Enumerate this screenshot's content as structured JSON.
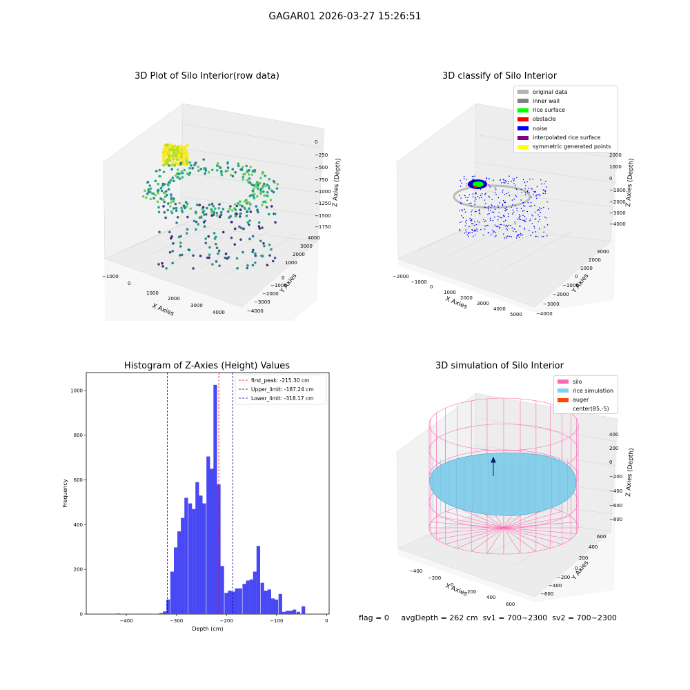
{
  "figure": {
    "suptitle": "GAGAR01 2026-03-27 15:26:51"
  },
  "panels": {
    "raw": {
      "title": "3D Plot of Silo Interior(row data)",
      "xlabel": "X Axies",
      "ylabel": "Y Axies",
      "zlabel": "Z Axies (Depth)",
      "xticks": [
        "−1000",
        "0",
        "1000",
        "2000",
        "3000",
        "4000"
      ],
      "yticks": [
        "−4000",
        "−3000",
        "−2000",
        "−1000",
        "0",
        "1000",
        "2000",
        "3000",
        "4000"
      ],
      "zticks": [
        "0",
        "−250",
        "−500",
        "−750",
        "−1000",
        "−1250",
        "−1500",
        "−1750"
      ]
    },
    "classify": {
      "title": "3D classify of Silo Interior",
      "xlabel": "X Axies",
      "ylabel": "Y Axies",
      "zlabel": "Z Axies (Depth)",
      "xticks": [
        "−2000",
        "−1000",
        "0",
        "1000",
        "2000",
        "3000",
        "4000",
        "5000"
      ],
      "yticks": [
        "−4000",
        "−3000",
        "−2000",
        "−1000",
        "0",
        "1000",
        "2000",
        "3000"
      ],
      "zticks": [
        "2000",
        "1000",
        "0",
        "−1000",
        "−2000",
        "−3000",
        "−4000"
      ],
      "legend": [
        {
          "label": "original data",
          "color": "#b4b4b4"
        },
        {
          "label": "inner wall",
          "color": "#808080"
        },
        {
          "label": "rice surface",
          "color": "#00ff00"
        },
        {
          "label": "obstacle",
          "color": "#ff0000"
        },
        {
          "label": "noise",
          "color": "#0000ff"
        },
        {
          "label": "interpolated rice surface",
          "color": "#800080"
        },
        {
          "label": "symmetric generated points",
          "color": "#ffff00"
        }
      ]
    },
    "simulation": {
      "title": "3D simulation of Silo Interior",
      "xlabel": "X Axies",
      "ylabel": "Y Axies",
      "zlabel": "Z Axies (Depth)",
      "xticks": [
        "−400",
        "−200",
        "0",
        "200",
        "400",
        "600"
      ],
      "yticks": [
        "−600",
        "−400",
        "−200",
        "0",
        "200",
        "400",
        "600"
      ],
      "zticks": [
        "400",
        "200",
        "0",
        "−200",
        "−400",
        "−600",
        "−800"
      ],
      "legend": [
        {
          "label": "silo",
          "color": "#ff69b4"
        },
        {
          "label": "rice simulation",
          "color": "#87ceeb"
        },
        {
          "label": "auger",
          "color": "#ff4500"
        },
        {
          "label": "center(85,-5)",
          "color": ""
        }
      ]
    }
  },
  "chart_data": [
    {
      "type": "bar",
      "title": "Histogram of Z-Axies (Height) Values",
      "xlabel": "Depth (cm)",
      "ylabel": "Frequency",
      "xlim": [
        -480,
        5
      ],
      "ylim": [
        0,
        1080
      ],
      "xticks": [
        -400,
        -300,
        -200,
        -100,
        0
      ],
      "yticks": [
        0,
        200,
        400,
        600,
        800,
        1000
      ],
      "bin_width": 7.2,
      "bar_color": "#4848f4",
      "bins": [
        [
          -420,
          3
        ],
        [
          -375,
          2
        ],
        [
          -362,
          2
        ],
        [
          -348,
          1
        ],
        [
          -334,
          5
        ],
        [
          -327,
          12
        ],
        [
          -320,
          65
        ],
        [
          -312,
          190
        ],
        [
          -305,
          298
        ],
        [
          -298,
          370
        ],
        [
          -291,
          430
        ],
        [
          -284,
          520
        ],
        [
          -276,
          495
        ],
        [
          -269,
          470
        ],
        [
          -262,
          590
        ],
        [
          -255,
          530
        ],
        [
          -248,
          495
        ],
        [
          -240,
          705
        ],
        [
          -233,
          650
        ],
        [
          -226,
          1025
        ],
        [
          -219,
          580
        ],
        [
          -212,
          215
        ],
        [
          -204,
          95
        ],
        [
          -197,
          105
        ],
        [
          -190,
          100
        ],
        [
          -183,
          115
        ],
        [
          -176,
          115
        ],
        [
          -168,
          135
        ],
        [
          -161,
          150
        ],
        [
          -154,
          155
        ],
        [
          -147,
          190
        ],
        [
          -140,
          305
        ],
        [
          -132,
          140
        ],
        [
          -125,
          105
        ],
        [
          -118,
          110
        ],
        [
          -111,
          70
        ],
        [
          -104,
          65
        ],
        [
          -96,
          90
        ],
        [
          -89,
          10
        ],
        [
          -82,
          15
        ],
        [
          -75,
          15
        ],
        [
          -68,
          20
        ],
        [
          -60,
          10
        ],
        [
          -50,
          35
        ]
      ],
      "vlines": [
        {
          "label": "first_peak: -215.30 cm",
          "x": -215.3,
          "color": "#ff0000"
        },
        {
          "label": "Upper_limit: -187.24 cm",
          "x": -187.24,
          "color": "#00008b"
        },
        {
          "label": "Lower_limit: -318.17 cm",
          "x": -318.17,
          "color": "#00008b"
        }
      ]
    }
  ],
  "status": {
    "flag": "flag = 0",
    "avg": "avgDepth = 262 cm",
    "sv1": "sv1 = 700~2300",
    "sv2": "sv2 = 700~2300"
  }
}
